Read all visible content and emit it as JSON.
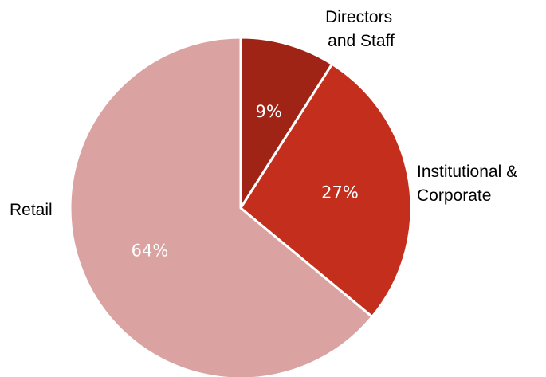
{
  "chart_data": {
    "type": "pie",
    "start_angle_deg": 0,
    "direction": "clockwise",
    "slices": [
      {
        "name": "Directors and Staff",
        "label_lines": [
          "Directors",
          "and Staff"
        ],
        "value": 9,
        "value_label": "9%",
        "color": "#9f2415"
      },
      {
        "name": "Institutional & Corporate",
        "label_lines": [
          "Institutional &",
          "Corporate"
        ],
        "value": 27,
        "value_label": "27%",
        "color": "#c42e1c"
      },
      {
        "name": "Retail",
        "label_lines": [
          "Retail"
        ],
        "value": 64,
        "value_label": "64%",
        "color": "#daa3a2"
      }
    ]
  }
}
